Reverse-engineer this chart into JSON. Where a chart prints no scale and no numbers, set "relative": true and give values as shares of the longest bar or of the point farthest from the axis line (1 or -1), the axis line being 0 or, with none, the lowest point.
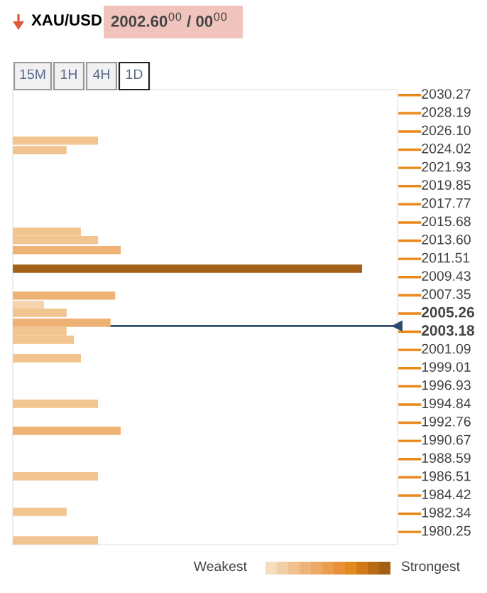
{
  "chart_data": {
    "type": "bar",
    "orientation": "horizontal",
    "relative": true,
    "title": "XAU/USD",
    "subtitle": "2002.60$^{00}$ / 00$^{00}$",
    "annotations": [
      "15M",
      "1H",
      "4H",
      "1D",
      "Weakest",
      "Strongest"
    ],
    "x": [
      2025.06,
      2023.97,
      2014.63,
      2013.66,
      2012.52,
      2010.4,
      2007.31,
      2006.25,
      2005.35,
      2004.21,
      2003.23,
      2002.26,
      2000.14,
      1994.93,
      1991.83,
      1986.62,
      1982.55,
      1979.29
    ],
    "values": [
      0.244,
      0.154,
      0.195,
      0.244,
      0.309,
      1.0,
      0.293,
      0.089,
      0.154,
      0.28,
      0.154,
      0.175,
      0.195,
      0.244,
      0.309,
      0.244,
      0.154,
      0.244
    ],
    "colors": [
      "#f2c490",
      "#f2c490",
      "#f2c490",
      "#f2c490",
      "#edb274",
      "#a3611a",
      "#edb274",
      "#f5d3ad",
      "#f2c490",
      "#edb274",
      "#f2c490",
      "#f2c490",
      "#f2c490",
      "#f2c490",
      "#edb274",
      "#f2c490",
      "#f2c490",
      "#f2c490"
    ],
    "ylim": [
      1978.8,
      2030.9
    ],
    "yticks": [
      2030.27,
      2028.19,
      {
        "value": 2026.1,
        "label": "2026.10"
      },
      2024.02,
      2021.93,
      2019.85,
      2017.77,
      2015.68,
      {
        "value": 2013.6,
        "label": "2013.60"
      },
      2011.51,
      2009.43,
      2007.35,
      2005.26,
      2003.18,
      2001.09,
      1999.01,
      1996.93,
      1994.84,
      1992.76,
      1990.67,
      1988.59,
      1986.51,
      1984.42,
      1982.34,
      1980.25
    ],
    "ref_lines": [
      {
        "axis": "y",
        "value": 2003.84,
        "color": "#2c4a6e"
      }
    ],
    "grid": false,
    "legend": false
  }
}
